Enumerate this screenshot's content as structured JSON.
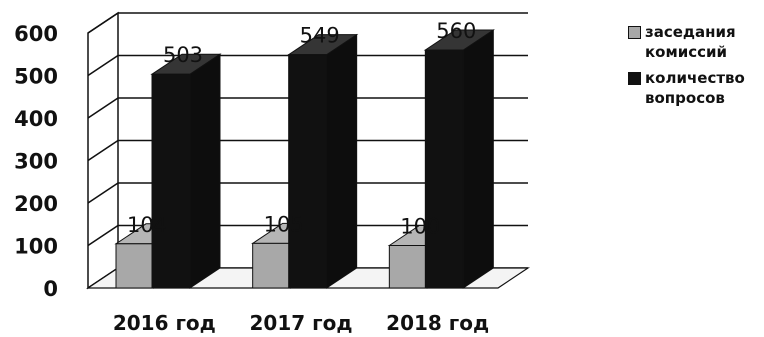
{
  "chart_data": {
    "type": "bar",
    "style": "3d-clustered-column",
    "title": "",
    "xlabel": "",
    "ylabel": "",
    "categories": [
      "2016 год",
      "2017 год",
      "2018 год"
    ],
    "series": [
      {
        "name": "заседания комиссий",
        "values": [
          104,
          105,
          100
        ],
        "color": "#a8a8a8"
      },
      {
        "name": "количество вопросов",
        "values": [
          503,
          549,
          560
        ],
        "color": "#111111"
      }
    ],
    "ylim": [
      0,
      600
    ],
    "yticks": [
      0,
      100,
      200,
      300,
      400,
      500,
      600
    ],
    "grid": true,
    "legend": "right",
    "data_labels": true
  }
}
